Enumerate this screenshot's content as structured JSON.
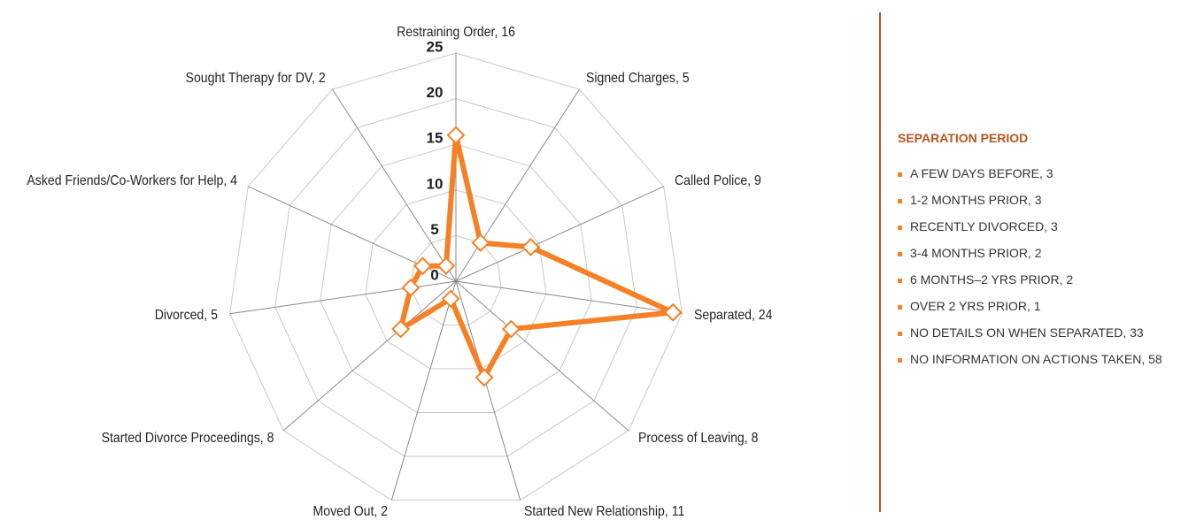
{
  "chart_data": {
    "type": "radar",
    "categories": [
      "Restraining Order, 16",
      "Signed Charges, 5",
      "Called Police, 9",
      "Separated, 24",
      "Process of Leaving, 8",
      "Started New Relationship, 11",
      "Moved Out, 2",
      "Started Divorce Proceedings, 8",
      "Divorced, 5",
      "Asked Friends/Co-Workers for Help, 4",
      "Sought Therapy for DV, 2"
    ],
    "values": [
      16,
      5,
      9,
      24,
      8,
      11,
      2,
      8,
      5,
      4,
      2
    ],
    "color": "#f58025",
    "ylim": [
      0,
      25
    ],
    "yticks": [
      0,
      5,
      10,
      15,
      20,
      25
    ],
    "grid": true
  },
  "sidebar": {
    "title": "SEPARATION PERIOD",
    "items": [
      "A FEW DAYS BEFORE, 3",
      "1-2 MONTHS PRIOR, 3",
      "RECENTLY DIVORCED, 3",
      "3-4 MONTHS PRIOR, 2",
      "6 MONTHS–2 YRS PRIOR, 2",
      "OVER 2 YRS PRIOR, 1",
      "NO DETAILS ON WHEN SEPARATED, 33",
      "NO INFORMATION ON ACTIONS TAKEN, 58"
    ]
  }
}
